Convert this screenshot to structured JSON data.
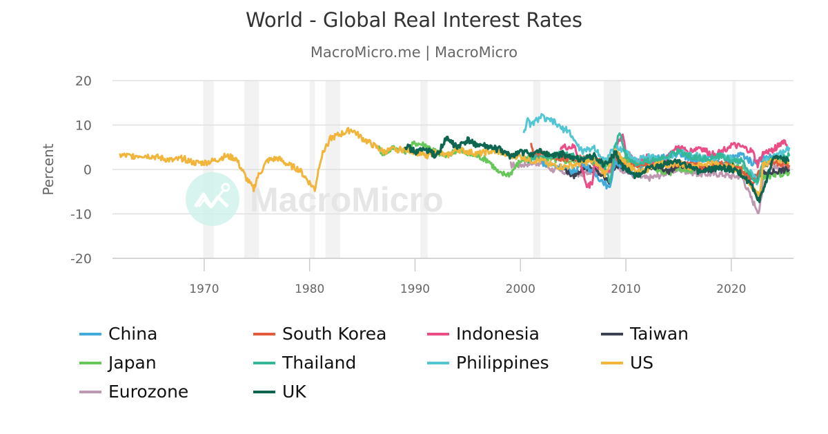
{
  "header": {
    "title": "World - Global Real Interest Rates",
    "subtitle": "MacroMicro.me | MacroMicro"
  },
  "watermark": {
    "text": "MacroMicro"
  },
  "chart_data": {
    "type": "line",
    "title": "World - Global Real Interest Rates",
    "subtitle": "MacroMicro.me | MacroMicro",
    "xlabel": "",
    "ylabel": "Percent",
    "ylim": [
      -20,
      20
    ],
    "xlim": [
      1961.3,
      2025.9
    ],
    "yticks": [
      "20",
      "10",
      "0",
      "-10",
      "-20"
    ],
    "xticks": [
      "1970",
      "1980",
      "1990",
      "2000",
      "2010",
      "2020"
    ],
    "grid": true,
    "legend_position": "bottom",
    "recession_bands": [
      [
        1969.9,
        1970.9
      ],
      [
        1973.8,
        1975.2
      ],
      [
        1980.0,
        1980.5
      ],
      [
        1981.5,
        1982.9
      ],
      [
        1990.5,
        1991.2
      ],
      [
        2001.2,
        2001.9
      ],
      [
        2007.9,
        2009.5
      ],
      [
        2020.1,
        2020.4
      ]
    ],
    "series": [
      {
        "name": "China",
        "color": "#41ABDB",
        "x": [
          2002,
          2004,
          2005,
          2006,
          2007,
          2008,
          2008.4,
          2009,
          2010,
          2011,
          2012,
          2013,
          2014,
          2015,
          2016,
          2017,
          2018,
          2019,
          2020,
          2021,
          2022,
          2023,
          2024,
          2025.5
        ],
        "y": [
          1.5,
          0.5,
          -0.5,
          1.5,
          -1.0,
          -3.0,
          -4.5,
          2.0,
          0.0,
          -1.0,
          2.0,
          2.5,
          3.0,
          3.5,
          2.5,
          2.0,
          2.5,
          1.0,
          2.5,
          3.5,
          1.5,
          2.5,
          3.0,
          2.0
        ]
      },
      {
        "name": "South Korea",
        "color": "#E25B3D",
        "x": [
          2001,
          2001.3,
          2002,
          2004,
          2006,
          2008,
          2009,
          2010,
          2012,
          2014,
          2016,
          2018,
          2019,
          2020,
          2021,
          2022,
          2023,
          2024,
          2025.5
        ],
        "y": [
          5.5,
          3.0,
          3.5,
          2.5,
          2.5,
          1.5,
          3.0,
          1.0,
          1.0,
          1.5,
          1.0,
          0.5,
          1.5,
          1.0,
          0.0,
          -3.0,
          1.0,
          1.5,
          1.0
        ]
      },
      {
        "name": "Indonesia",
        "color": "#EB4D86",
        "x": [
          2003.8,
          2005.2,
          2005.5,
          2006,
          2006.3,
          2006.8,
          2007,
          2008,
          2008.5,
          2009,
          2009.7,
          2010,
          2011,
          2012,
          2013,
          2014,
          2015,
          2016,
          2017,
          2018,
          2019,
          2020,
          2021,
          2022,
          2022.5,
          2023,
          2024,
          2025,
          2025.5
        ],
        "y": [
          5.0,
          5.0,
          2.0,
          -1.0,
          -4.0,
          -3.0,
          1.0,
          0.0,
          -1.0,
          5.0,
          8.0,
          4.0,
          2.0,
          3.0,
          1.0,
          3.0,
          5.0,
          4.0,
          5.0,
          3.5,
          4.0,
          5.5,
          5.0,
          4.0,
          1.0,
          3.5,
          4.5,
          6.5,
          4.5
        ]
      },
      {
        "name": "Taiwan",
        "color": "#3D4253",
        "x": [
          2004,
          2005,
          2006,
          2007,
          2008,
          2008.5,
          2009,
          2010,
          2011,
          2012,
          2013,
          2014,
          2015,
          2016,
          2017,
          2018,
          2019,
          2020,
          2021,
          2022,
          2023,
          2024,
          2025.5
        ],
        "y": [
          0.5,
          -1.5,
          0.5,
          0.0,
          -2.0,
          -3.0,
          1.0,
          0.0,
          -1.0,
          0.0,
          1.0,
          -0.5,
          1.0,
          0.5,
          0.5,
          0.0,
          0.5,
          1.0,
          -1.0,
          -2.0,
          -1.0,
          -0.5,
          0.0
        ]
      },
      {
        "name": "Japan",
        "color": "#67C75A",
        "x": [
          1986.5,
          1987,
          1988,
          1989,
          1990,
          1991,
          1992,
          1993,
          1994,
          1995,
          1996,
          1997,
          1998,
          1999,
          2000,
          2001,
          2002,
          2004,
          2006,
          2008,
          2009,
          2010,
          2011,
          2012,
          2013,
          2014,
          2015,
          2016,
          2017,
          2018,
          2019,
          2020,
          2021,
          2022,
          2023,
          2024,
          2025.5
        ],
        "y": [
          5.0,
          3.5,
          5.0,
          4.0,
          6.0,
          5.5,
          4.0,
          3.0,
          4.5,
          3.5,
          3.0,
          2.0,
          -1.0,
          -1.0,
          2.0,
          3.0,
          2.5,
          2.0,
          2.0,
          1.0,
          3.0,
          2.0,
          1.0,
          1.5,
          0.0,
          -1.0,
          0.5,
          -0.5,
          0.0,
          0.5,
          1.0,
          1.0,
          0.5,
          -1.5,
          -1.5,
          -1.5,
          -0.5
        ]
      },
      {
        "name": "Thailand",
        "color": "#34B898",
        "x": [
          2000.5,
          2002,
          2004,
          2006,
          2007,
          2008,
          2008.5,
          2009,
          2009.4,
          2010,
          2011,
          2012,
          2013,
          2014,
          2015,
          2016,
          2017,
          2018,
          2019,
          2020,
          2021,
          2022,
          2022.5,
          2023,
          2024,
          2025.5
        ],
        "y": [
          2.0,
          3.0,
          3.5,
          2.5,
          2.0,
          1.0,
          -3.0,
          5.0,
          8.5,
          3.0,
          1.0,
          2.0,
          2.0,
          3.0,
          4.0,
          3.0,
          2.5,
          2.5,
          3.0,
          2.0,
          2.0,
          -2.0,
          -3.0,
          1.0,
          2.5,
          3.0
        ]
      },
      {
        "name": "Philippines",
        "color": "#53C6D4",
        "x": [
          2000.3,
          2000.7,
          2001,
          2002,
          2002.5,
          2003,
          2004,
          2004.5,
          2005,
          2005.5,
          2006,
          2007,
          2008,
          2009,
          2010,
          2011,
          2012,
          2013,
          2014,
          2015,
          2016,
          2017,
          2018,
          2019,
          2020,
          2021,
          2022,
          2022.5,
          2023,
          2024,
          2025,
          2025.5
        ],
        "y": [
          8.5,
          11.0,
          10.0,
          12.0,
          11.0,
          11.0,
          9.0,
          9.0,
          7.0,
          5.0,
          4.0,
          5.0,
          2.0,
          5.0,
          4.0,
          2.0,
          3.0,
          2.5,
          2.5,
          4.0,
          3.5,
          3.0,
          2.0,
          3.0,
          2.5,
          1.5,
          -1.0,
          -3.0,
          1.5,
          3.0,
          4.0,
          5.0
        ]
      },
      {
        "name": "US",
        "color": "#F2B53C",
        "x": [
          1962,
          1963,
          1964,
          1965,
          1966,
          1967,
          1968,
          1969,
          1970,
          1971,
          1972,
          1973,
          1974,
          1974.7,
          1975,
          1976,
          1977,
          1978,
          1979,
          1980,
          1980.5,
          1981,
          1981.5,
          1982,
          1983,
          1984,
          1985,
          1986,
          1987,
          1988,
          1989,
          1990,
          1991,
          1992,
          1993,
          1994,
          1995,
          1996,
          1997,
          1998,
          1999,
          2000,
          2001,
          2002,
          2003,
          2004,
          2005,
          2006,
          2007,
          2008,
          2009,
          2010,
          2011,
          2012,
          2013,
          2014,
          2015,
          2016,
          2017,
          2018,
          2019,
          2020,
          2021,
          2022,
          2022.7,
          2023,
          2024,
          2025.5
        ],
        "y": [
          3.2,
          3.0,
          3.2,
          3.0,
          2.5,
          2.0,
          2.5,
          1.5,
          1.5,
          2.0,
          3.0,
          2.5,
          -2.0,
          -4.5,
          -2.0,
          2.0,
          2.5,
          1.0,
          0.0,
          -3.0,
          -4.5,
          2.0,
          5.0,
          7.0,
          8.0,
          9.0,
          7.0,
          5.5,
          4.0,
          4.5,
          4.5,
          4.0,
          3.0,
          4.0,
          3.0,
          4.5,
          4.0,
          3.5,
          4.0,
          4.0,
          3.0,
          3.0,
          2.0,
          2.0,
          1.0,
          0.5,
          1.0,
          1.5,
          2.0,
          -1.0,
          4.0,
          1.5,
          -0.5,
          0.0,
          1.5,
          1.0,
          1.5,
          0.5,
          1.0,
          1.5,
          1.0,
          0.5,
          -1.0,
          -4.0,
          -6.0,
          1.0,
          2.5,
          1.5
        ]
      },
      {
        "name": "Eurozone",
        "color": "#BE98B0",
        "x": [
          1999,
          2000,
          2001,
          2002,
          2003,
          2004,
          2005,
          2006,
          2007,
          2008,
          2009,
          2010,
          2011,
          2012,
          2013,
          2014,
          2015,
          2016,
          2017,
          2018,
          2019,
          2020,
          2021,
          2022,
          2022.6,
          2022.9,
          2023,
          2024,
          2025.5
        ],
        "y": [
          1.0,
          1.0,
          1.5,
          1.5,
          0.0,
          -0.5,
          -1.0,
          -1.0,
          0.0,
          -1.0,
          1.0,
          -0.5,
          -1.5,
          -2.0,
          -1.5,
          -0.5,
          0.0,
          -0.5,
          -1.0,
          -1.0,
          -1.0,
          -1.5,
          -1.5,
          -7.0,
          -9.5,
          -6.0,
          -1.0,
          0.5,
          0.0
        ]
      },
      {
        "name": "UK",
        "color": "#0E6650",
        "x": [
          1989,
          1990,
          1991,
          1992,
          1993,
          1994,
          1995,
          1996,
          1997,
          1998,
          1999,
          2000,
          2001,
          2002,
          2003,
          2004,
          2005,
          2006,
          2007,
          2008,
          2008.5,
          2009,
          2009.5,
          2010,
          2011,
          2012,
          2013,
          2014,
          2015,
          2016,
          2017,
          2018,
          2019,
          2020,
          2021,
          2022,
          2022.5,
          2023,
          2024,
          2025.5
        ],
        "y": [
          5.5,
          4.0,
          4.5,
          3.0,
          7.0,
          5.0,
          6.5,
          5.5,
          5.0,
          4.5,
          3.0,
          4.0,
          3.5,
          4.0,
          3.0,
          3.5,
          2.5,
          2.5,
          3.0,
          1.0,
          2.0,
          4.0,
          1.0,
          0.0,
          -1.5,
          0.0,
          0.5,
          1.5,
          2.0,
          0.5,
          -0.5,
          0.0,
          0.5,
          0.0,
          -1.0,
          -4.0,
          -7.5,
          -5.0,
          2.5,
          2.0
        ]
      }
    ]
  }
}
